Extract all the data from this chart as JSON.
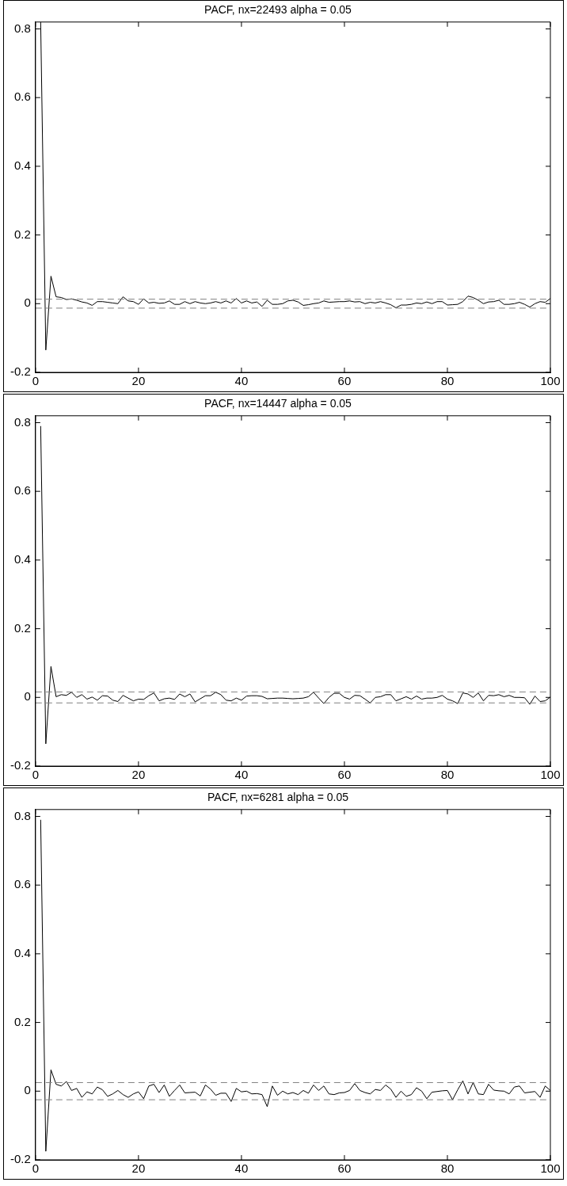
{
  "chart_data": [
    {
      "type": "line",
      "title": "PACF, nx=22493 alpha = 0.05",
      "x": [
        1,
        2,
        3,
        4,
        5,
        6,
        7,
        8,
        9,
        10,
        11,
        12,
        13,
        14,
        15,
        16,
        17,
        18,
        19,
        20,
        21,
        22,
        23,
        24,
        25,
        26,
        27,
        28,
        29,
        30,
        31,
        32,
        33,
        34,
        35,
        36,
        37,
        38,
        39,
        40,
        41,
        42,
        43,
        44,
        45,
        46,
        47,
        48,
        49,
        50,
        51,
        52,
        53,
        54,
        55,
        56,
        57,
        58,
        59,
        60,
        61,
        62,
        63,
        64,
        65,
        66,
        67,
        68,
        69,
        70,
        71,
        72,
        73,
        74,
        75,
        76,
        77,
        78,
        79,
        80,
        81,
        82,
        83,
        84,
        85,
        86,
        87,
        88,
        89,
        90,
        91,
        92,
        93,
        94,
        95,
        96,
        97,
        98,
        99,
        100
      ],
      "series": [
        {
          "color": "#000000",
          "values": [
            0.82,
            -0.135,
            0.08,
            0.02,
            0.018,
            0.012,
            0.014,
            0.01,
            0.005,
            0.002,
            -0.005,
            0.006,
            0.006,
            0.004,
            0.002,
            0,
            0.02,
            0.008,
            0.006,
            -0.002,
            0.014,
            0.002,
            0.004,
            0.001,
            0.002,
            0.008,
            -0.002,
            -0.002,
            0.006,
            0,
            0.006,
            0.002,
            0,
            0.002,
            0.006,
            0.002,
            0.008,
            0.002,
            0.015,
            0.002,
            0.008,
            0.002,
            0.005,
            -0.008,
            0.01,
            -0.002,
            -0.002,
            0,
            0.008,
            0.01,
            0.005,
            -0.005,
            -0.003,
            0,
            0.002,
            0.008,
            0.004,
            0.005,
            0.006,
            0.006,
            0.008,
            0.005,
            0.006,
            0,
            0.004,
            0.002,
            0.006,
            0.002,
            -0.003,
            -0.012,
            -0.004,
            -0.004,
            -0.002,
            0.002,
            0,
            0.005,
            0,
            0.006,
            0.006,
            -0.004,
            -0.003,
            -0.002,
            0.006,
            0.022,
            0.018,
            0.01,
            0,
            0.005,
            0.006,
            0.01,
            -0.002,
            -0.002,
            0,
            0.004,
            -0.002,
            -0.01,
            0,
            0.006,
            0.004,
            0.015
          ]
        }
      ],
      "xlim": [
        0,
        100
      ],
      "xticks": [
        0,
        20,
        40,
        60,
        80,
        100
      ],
      "ylim": [
        -0.2,
        0.82
      ],
      "yticks": [
        -0.2,
        0,
        0.2,
        0.4,
        0.6,
        0.8
      ],
      "grid": false,
      "legend": false,
      "line_style": "solid",
      "marker": "none",
      "ref_lines": [
        {
          "axis": "y",
          "value": 0.013,
          "color": "#808080",
          "line_style": "dashed"
        },
        {
          "axis": "y",
          "value": -0.013,
          "color": "#808080",
          "line_style": "dashed"
        }
      ]
    },
    {
      "type": "line",
      "title": "PACF, nx=14447 alpha = 0.05",
      "x": [
        1,
        2,
        3,
        4,
        5,
        6,
        7,
        8,
        9,
        10,
        11,
        12,
        13,
        14,
        15,
        16,
        17,
        18,
        19,
        20,
        21,
        22,
        23,
        24,
        25,
        26,
        27,
        28,
        29,
        30,
        31,
        32,
        33,
        34,
        35,
        36,
        37,
        38,
        39,
        40,
        41,
        42,
        43,
        44,
        45,
        46,
        47,
        48,
        49,
        50,
        51,
        52,
        53,
        54,
        55,
        56,
        57,
        58,
        59,
        60,
        61,
        62,
        63,
        64,
        65,
        66,
        67,
        68,
        69,
        70,
        71,
        72,
        73,
        74,
        75,
        76,
        77,
        78,
        79,
        80,
        81,
        82,
        83,
        84,
        85,
        86,
        87,
        88,
        89,
        90,
        91,
        92,
        93,
        94,
        95,
        96,
        97,
        98,
        99,
        100
      ],
      "series": [
        {
          "color": "#000000",
          "values": [
            0.79,
            -0.135,
            0.09,
            0.002,
            0.008,
            0.006,
            0.015,
            0,
            0.008,
            -0.005,
            0.001,
            -0.008,
            0.005,
            0.004,
            -0.008,
            -0.012,
            0.006,
            -0.002,
            -0.01,
            -0.005,
            -0.006,
            0.005,
            0.013,
            -0.01,
            -0.004,
            -0.002,
            -0.006,
            0.01,
            0.002,
            0.01,
            -0.013,
            -0.004,
            0.005,
            0.005,
            0.015,
            0.008,
            -0.008,
            -0.01,
            -0.002,
            -0.008,
            0.004,
            0.005,
            0.005,
            0.003,
            -0.004,
            -0.003,
            -0.002,
            -0.002,
            -0.003,
            -0.004,
            -0.003,
            -0.002,
            0.002,
            0.015,
            -0.002,
            -0.018,
            0,
            0.012,
            0.012,
            0,
            -0.005,
            0.006,
            0.005,
            -0.005,
            -0.016,
            0,
            0.002,
            0.008,
            0.008,
            -0.01,
            -0.004,
            0.002,
            -0.005,
            0.004,
            -0.005,
            -0.002,
            -0.002,
            0,
            0.006,
            -0.005,
            -0.01,
            -0.018,
            0.013,
            0.01,
            0,
            0.013,
            -0.01,
            0.006,
            0.005,
            0.008,
            0.002,
            0.006,
            0,
            0,
            -0.001,
            -0.02,
            0.004,
            -0.012,
            -0.01,
            0.001
          ]
        }
      ],
      "xlim": [
        0,
        100
      ],
      "xticks": [
        0,
        20,
        40,
        60,
        80,
        100
      ],
      "ylim": [
        -0.2,
        0.82
      ],
      "yticks": [
        -0.2,
        0,
        0.2,
        0.4,
        0.6,
        0.8
      ],
      "grid": false,
      "legend": false,
      "line_style": "solid",
      "marker": "none",
      "ref_lines": [
        {
          "axis": "y",
          "value": 0.016,
          "color": "#808080",
          "line_style": "dashed"
        },
        {
          "axis": "y",
          "value": -0.016,
          "color": "#808080",
          "line_style": "dashed"
        }
      ]
    },
    {
      "type": "line",
      "title": "PACF, nx=6281 alpha = 0.05",
      "x": [
        1,
        2,
        3,
        4,
        5,
        6,
        7,
        8,
        9,
        10,
        11,
        12,
        13,
        14,
        15,
        16,
        17,
        18,
        19,
        20,
        21,
        22,
        23,
        24,
        25,
        26,
        27,
        28,
        29,
        30,
        31,
        32,
        33,
        34,
        35,
        36,
        37,
        38,
        39,
        40,
        41,
        42,
        43,
        44,
        45,
        46,
        47,
        48,
        49,
        50,
        51,
        52,
        53,
        54,
        55,
        56,
        57,
        58,
        59,
        60,
        61,
        62,
        63,
        64,
        65,
        66,
        67,
        68,
        69,
        70,
        71,
        72,
        73,
        74,
        75,
        76,
        77,
        78,
        79,
        80,
        81,
        82,
        83,
        84,
        85,
        86,
        87,
        88,
        89,
        90,
        91,
        92,
        93,
        94,
        95,
        96,
        97,
        98,
        99,
        100
      ],
      "series": [
        {
          "color": "#000000",
          "values": [
            0.79,
            -0.175,
            0.062,
            0.02,
            0.015,
            0.028,
            0.002,
            0.008,
            -0.018,
            -0.002,
            -0.008,
            0.012,
            0.004,
            -0.015,
            -0.008,
            0.002,
            -0.01,
            -0.018,
            -0.008,
            -0.002,
            -0.022,
            0.015,
            0.02,
            -0.004,
            0.018,
            -0.015,
            0.002,
            0.018,
            -0.005,
            -0.004,
            -0.003,
            -0.014,
            0.018,
            0.006,
            -0.012,
            -0.006,
            -0.006,
            -0.03,
            0.008,
            -0.002,
            0,
            -0.008,
            -0.007,
            -0.01,
            -0.045,
            0.015,
            -0.012,
            0,
            -0.008,
            -0.004,
            -0.01,
            0.002,
            -0.006,
            0.018,
            0.002,
            0.015,
            -0.008,
            -0.01,
            -0.005,
            -0.004,
            0.002,
            0.022,
            0.002,
            -0.004,
            -0.008,
            0.005,
            0.002,
            0.018,
            0.006,
            -0.018,
            0,
            -0.015,
            -0.01,
            0.01,
            0,
            -0.022,
            -0.003,
            -0.001,
            0.001,
            0.002,
            -0.025,
            0.004,
            0.03,
            -0.008,
            0.025,
            -0.008,
            -0.01,
            0.02,
            0.003,
            0.001,
            0,
            -0.008,
            0.012,
            0.015,
            -0.005,
            -0.003,
            -0.001,
            -0.018,
            0.015,
            0.002
          ]
        }
      ],
      "xlim": [
        0,
        100
      ],
      "xticks": [
        0,
        20,
        40,
        60,
        80,
        100
      ],
      "ylim": [
        -0.2,
        0.82
      ],
      "yticks": [
        -0.2,
        0,
        0.2,
        0.4,
        0.6,
        0.8
      ],
      "grid": false,
      "legend": false,
      "line_style": "solid",
      "marker": "none",
      "ref_lines": [
        {
          "axis": "y",
          "value": 0.025,
          "color": "#808080",
          "line_style": "dashed"
        },
        {
          "axis": "y",
          "value": -0.025,
          "color": "#808080",
          "line_style": "dashed"
        }
      ]
    }
  ]
}
